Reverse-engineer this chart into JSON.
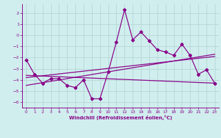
{
  "x_data": [
    0,
    1,
    2,
    3,
    4,
    5,
    6,
    7,
    8,
    9,
    10,
    11,
    12,
    13,
    14,
    15,
    16,
    17,
    18,
    19,
    20,
    21,
    22,
    23
  ],
  "y_main": [
    -2.2,
    -3.5,
    -4.3,
    -3.9,
    -3.9,
    -4.5,
    -4.7,
    -4.0,
    -5.7,
    -5.7,
    -3.3,
    -0.6,
    2.3,
    -0.4,
    0.3,
    -0.5,
    -1.3,
    -1.5,
    -1.8,
    -0.8,
    -1.8,
    -3.5,
    -3.1,
    -4.3
  ],
  "y_line1_x": [
    0,
    23
  ],
  "y_line1_y": [
    -3.6,
    -4.3
  ],
  "y_line2_x": [
    0,
    23
  ],
  "y_line2_y": [
    -4.5,
    -1.7
  ],
  "y_line3_x": [
    0,
    23
  ],
  "y_line3_y": [
    -3.8,
    -1.9
  ],
  "line_color": "#880088",
  "bg_color": "#d0eeee",
  "grid_color": "#b8d8d8",
  "xlim": [
    -0.5,
    23.5
  ],
  "ylim": [
    -6.5,
    2.8
  ],
  "yticks": [
    2,
    1,
    0,
    -1,
    -2,
    -3,
    -4,
    -5,
    -6
  ],
  "xticks": [
    0,
    1,
    2,
    3,
    4,
    5,
    6,
    7,
    8,
    9,
    10,
    11,
    12,
    13,
    14,
    15,
    16,
    17,
    18,
    19,
    20,
    21,
    22,
    23
  ],
  "xlabel": "Windchill (Refroidissement éolien,°C)",
  "tick_color": "#880088"
}
